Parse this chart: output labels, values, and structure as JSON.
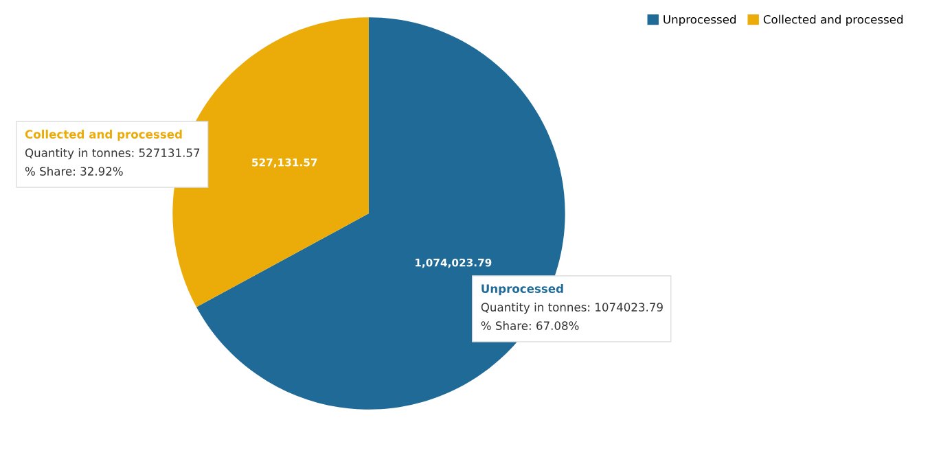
{
  "chart_data": {
    "type": "pie",
    "categories": [
      "Unprocessed",
      "Collected and processed"
    ],
    "values": [
      1074023.79,
      527131.57
    ],
    "colors": [
      "#1f6a96",
      "#ebac0a"
    ],
    "value_labels": [
      "1,074,023.79",
      "527,131.57"
    ],
    "legend": "top right",
    "annotations": [
      {
        "text": "Collected and processed",
        "x": "Collected and processed"
      },
      {
        "text": "Quantity in tonnes: 527131.57",
        "x": "Collected and processed"
      },
      {
        "text": "% Share: 32.92%",
        "x": "Collected and processed"
      },
      {
        "text": "Unprocessed",
        "x": "Unprocessed"
      },
      {
        "text": "Quantity in tonnes: 1074023.79",
        "x": "Unprocessed"
      },
      {
        "text": "% Share: 67.08%",
        "x": "Unprocessed"
      }
    ]
  }
}
